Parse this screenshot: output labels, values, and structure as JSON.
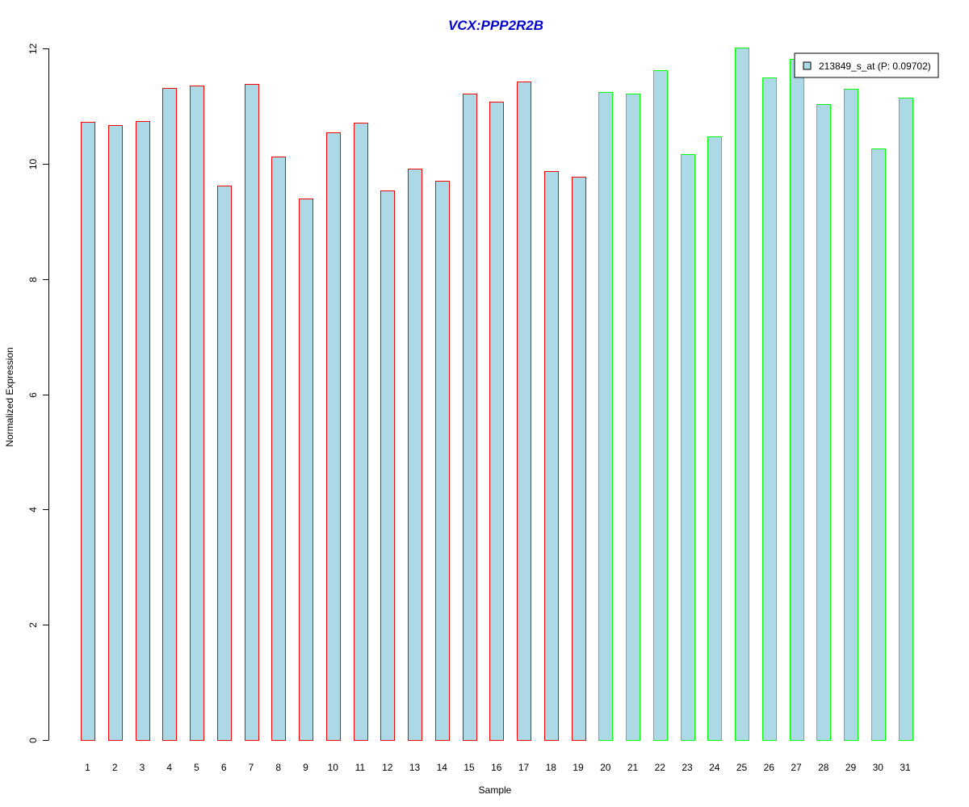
{
  "chart_data": {
    "type": "bar",
    "title": "VCX:PPP2R2B",
    "xlabel": "Sample",
    "ylabel": "Normalized Expression",
    "ylim": [
      0,
      12
    ],
    "yticks": [
      0,
      2,
      4,
      6,
      8,
      10,
      12
    ],
    "grid": false,
    "legend": {
      "placement": "top-right",
      "entries": [
        "213849_s_at (P: 0.09702)"
      ]
    },
    "categories": [
      "1",
      "2",
      "3",
      "4",
      "5",
      "6",
      "7",
      "8",
      "9",
      "10",
      "11",
      "12",
      "13",
      "14",
      "15",
      "16",
      "17",
      "18",
      "19",
      "20",
      "21",
      "22",
      "23",
      "24",
      "25",
      "26",
      "27",
      "28",
      "29",
      "30",
      "31"
    ],
    "series": [
      {
        "name": "213849_s_at (P: 0.09702)",
        "values": [
          10.72,
          10.67,
          10.74,
          11.31,
          11.36,
          9.62,
          11.39,
          10.13,
          9.4,
          10.54,
          10.71,
          9.53,
          9.92,
          9.7,
          11.22,
          11.07,
          11.43,
          9.87,
          9.78,
          11.25,
          11.21,
          11.62,
          10.17,
          10.48,
          12.02,
          11.49,
          11.82,
          11.04,
          11.3,
          10.26,
          11.15
        ],
        "groups": [
          "a",
          "a",
          "a",
          "a",
          "a",
          "a",
          "a",
          "a",
          "a",
          "a",
          "a",
          "a",
          "a",
          "a",
          "a",
          "a",
          "a",
          "a",
          "a",
          "b",
          "b",
          "b",
          "b",
          "b",
          "b",
          "b",
          "b",
          "b",
          "b",
          "b",
          "b"
        ]
      }
    ],
    "colors": {
      "bar_fill": "#add8e6",
      "group_a_border": "#ff0000",
      "group_b_border": "#00ff00",
      "title": "#0000cd"
    }
  }
}
